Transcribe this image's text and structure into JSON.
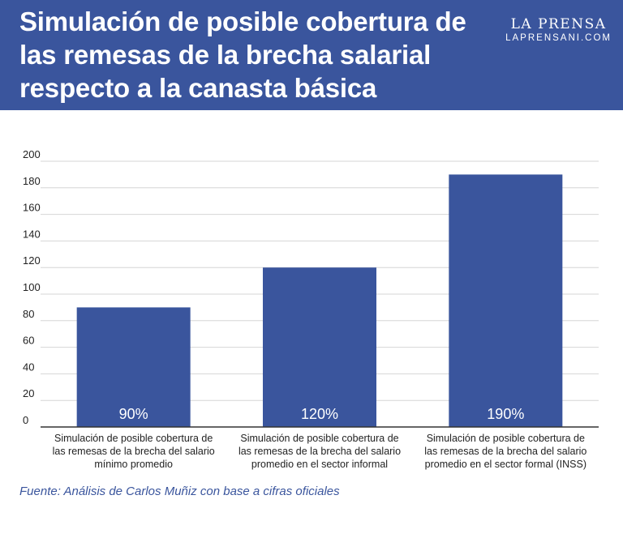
{
  "header": {
    "title_lines": [
      "Simulación de posible cobertura de",
      "las remesas de la brecha salarial",
      "respecto a la canasta básica"
    ],
    "brand_name": "LA PRENSA",
    "brand_url": "LAPRENSANI.COM"
  },
  "colors": {
    "header_bg": "#3a559d",
    "bar": "#3a559d",
    "source_text": "#3a559d"
  },
  "chart_data": {
    "type": "bar",
    "title": "Simulación de posible cobertura de las remesas de la brecha salarial respecto a la canasta básica",
    "categories": [
      [
        "Simulación de posible cobertura de",
        "las remesas de la brecha del salario",
        "mínimo promedio"
      ],
      [
        "Simulación de posible cobertura de",
        "las remesas de la brecha del salario",
        "promedio en el sector informal"
      ],
      [
        "Simulación de posible cobertura de",
        "las remesas de la brecha del salario",
        "promedio en el sector formal (INSS)"
      ]
    ],
    "values": [
      90,
      120,
      190
    ],
    "data_labels": [
      "90%",
      "120%",
      "190%"
    ],
    "yticks": [
      0,
      20,
      40,
      60,
      80,
      100,
      120,
      140,
      160,
      180,
      200
    ],
    "ylim": [
      0,
      200
    ],
    "grid": true,
    "xlabel": "",
    "ylabel": ""
  },
  "source": "Fuente: Análisis de Carlos Muñiz con base a cifras oficiales"
}
